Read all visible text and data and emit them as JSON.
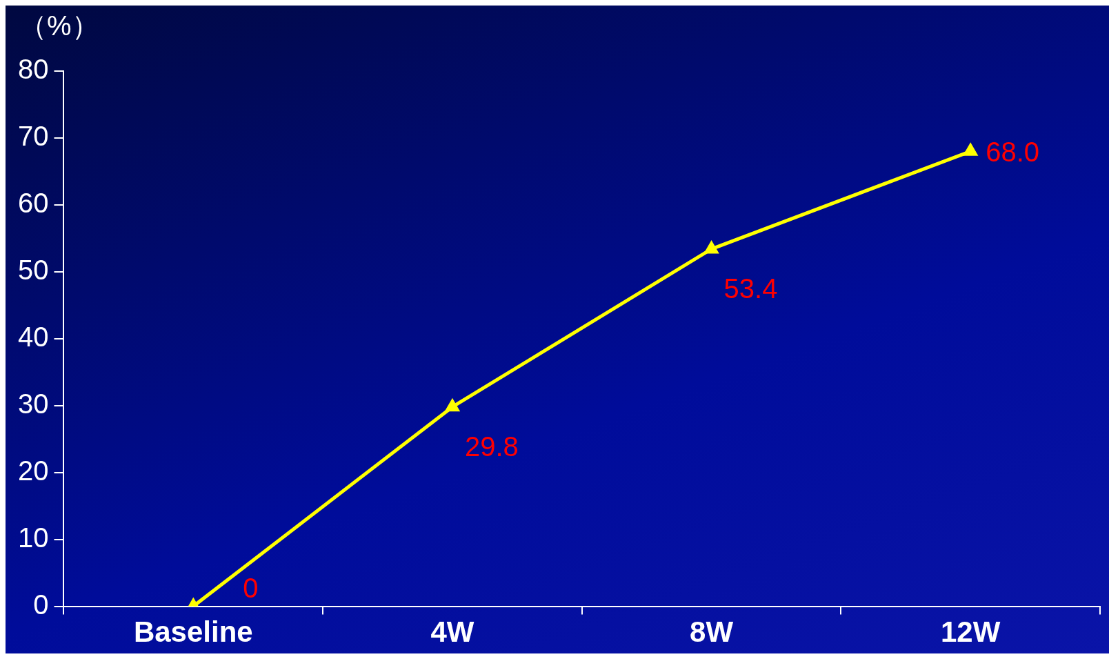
{
  "chart_data": {
    "type": "line",
    "ylabel": "（%）",
    "categories": [
      "Baseline",
      "4W",
      "8W",
      "12W"
    ],
    "series": [
      {
        "color": "#ffff00",
        "values": [
          0,
          29.8,
          53.4,
          68.0
        ],
        "value_labels": [
          "0",
          "29.8",
          "53.4",
          "68.0"
        ]
      }
    ],
    "ylim": [
      0,
      80
    ],
    "yticks": [
      0,
      10,
      20,
      30,
      40,
      50,
      60,
      70,
      80
    ],
    "grid": false,
    "legend": false,
    "marker": "triangle",
    "line_style": "solid"
  }
}
